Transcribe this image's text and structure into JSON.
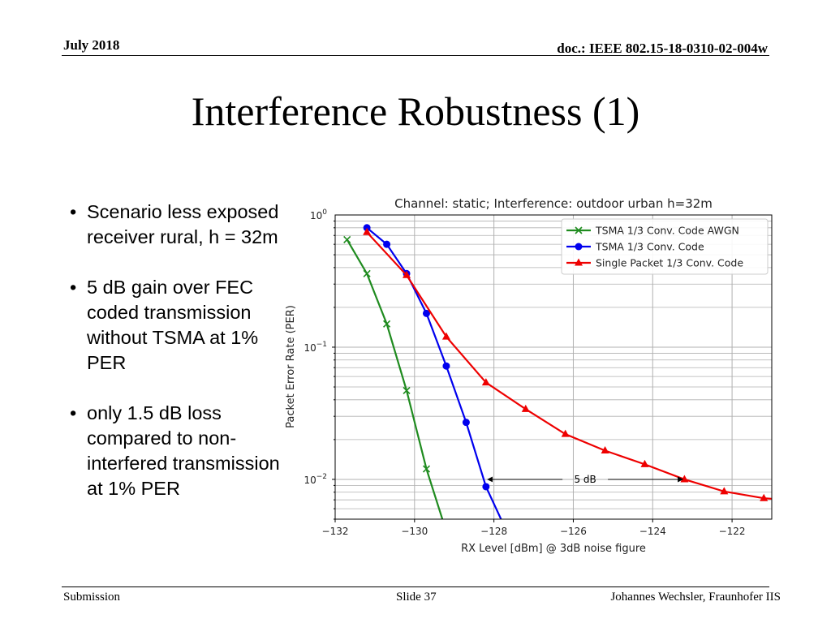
{
  "header": {
    "date": "July 2018",
    "doc": "doc.: IEEE 802.15-18-0310-02-004w"
  },
  "slide": {
    "title": "Interference Robustness (1)"
  },
  "bullets": [
    "Scenario less exposed receiver rural, h = 32m",
    "5 dB gain over FEC coded transmission without TSMA at 1% PER",
    "only 1.5 dB loss compared to non-interfered transmission at 1% PER"
  ],
  "footer": {
    "left": "Submission",
    "center": "Slide 37",
    "right": "Johannes Wechsler, Fraunhofer IIS"
  },
  "chart_data": {
    "type": "line",
    "title": "Channel: static; Interference: outdoor urban h=32m",
    "xlabel": "RX Level [dBm] @ 3dB noise figure",
    "ylabel": "Packet Error Rate (PER)",
    "xlim": [
      -132,
      -121
    ],
    "ylim": [
      0.005,
      1
    ],
    "yscale": "log",
    "xticks": [
      -132,
      -130,
      -128,
      -126,
      -124,
      -122
    ],
    "xtick_labels": [
      "−132",
      "−130",
      "−128",
      "−126",
      "−124",
      "−122"
    ],
    "yticks": [
      {
        "value": 1,
        "base": "10",
        "exp": "0"
      },
      {
        "value": 0.1,
        "base": "10",
        "exp": "−1"
      },
      {
        "value": 0.01,
        "base": "10",
        "exp": "−2"
      }
    ],
    "grid": true,
    "legend_position": "top-right",
    "series": [
      {
        "name": "TSMA 1/3 Conv. Code AWGN",
        "color": "#1f8b1f",
        "marker": "x",
        "x": [
          -131.7,
          -131.2,
          -130.7,
          -130.2,
          -129.7
        ],
        "y": [
          0.65,
          0.36,
          0.15,
          0.047,
          0.012
        ],
        "tail": [
          -129.25,
          0.0045
        ]
      },
      {
        "name": "TSMA 1/3 Conv. Code",
        "color": "#0000ee",
        "marker": "circle",
        "x": [
          -131.2,
          -130.7,
          -130.2,
          -129.7,
          -129.2,
          -128.7,
          -128.2
        ],
        "y": [
          0.8,
          0.6,
          0.36,
          0.18,
          0.072,
          0.027,
          0.0088
        ],
        "tail": [
          -127.75,
          0.0045
        ]
      },
      {
        "name": "Single Packet 1/3 Conv. Code",
        "color": "#ee0000",
        "marker": "triangle",
        "x": [
          -131.2,
          -130.2,
          -129.2,
          -128.2,
          -127.2,
          -126.2,
          -125.2,
          -124.2,
          -123.2,
          -122.2,
          -121.2
        ],
        "y": [
          0.74,
          0.35,
          0.12,
          0.054,
          0.034,
          0.022,
          0.0165,
          0.013,
          0.01,
          0.0081,
          0.0072
        ],
        "tail": [
          -120.9,
          0.0071
        ]
      }
    ],
    "annotation": {
      "text": "5 dB",
      "x_start": -128.2,
      "x_end": -123.2,
      "y": 0.01
    }
  }
}
